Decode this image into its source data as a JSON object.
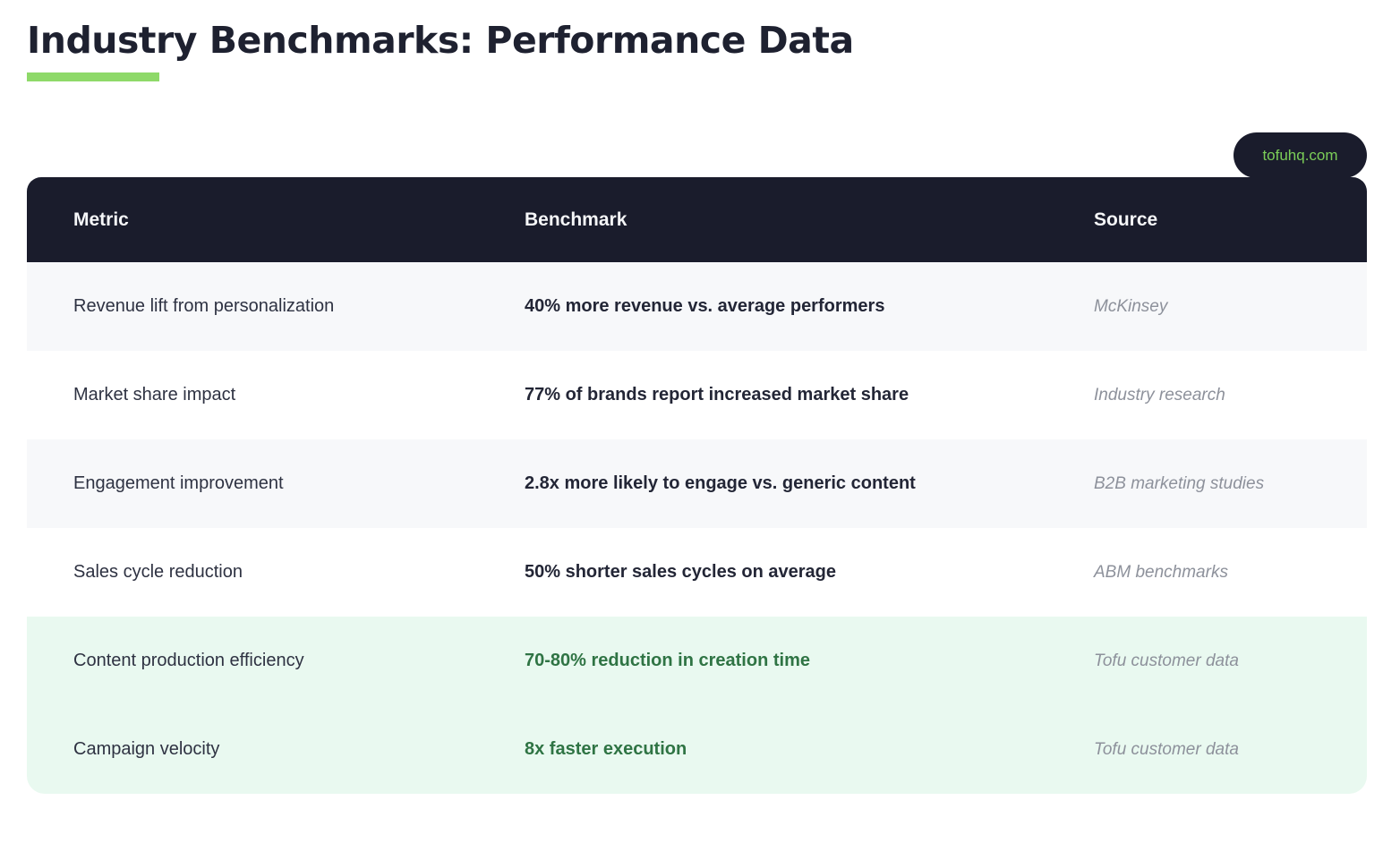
{
  "page": {
    "title": "Industry Benchmarks: Performance Data"
  },
  "badge": {
    "label": "tofuhq.com"
  },
  "table": {
    "columns": [
      "Metric",
      "Benchmark",
      "Source"
    ],
    "rows": [
      {
        "metric": "Revenue lift from personalization",
        "benchmark": "40% more revenue vs. average performers",
        "source": "McKinsey",
        "highlight": false
      },
      {
        "metric": "Market share impact",
        "benchmark": "77% of brands report increased market share",
        "source": "Industry research",
        "highlight": false
      },
      {
        "metric": "Engagement improvement",
        "benchmark": "2.8x more likely to engage vs. generic content",
        "source": "B2B marketing studies",
        "highlight": false
      },
      {
        "metric": "Sales cycle reduction",
        "benchmark": "50% shorter sales cycles on average",
        "source": "ABM benchmarks",
        "highlight": false
      },
      {
        "metric": "Content production efficiency",
        "benchmark": "70-80% reduction in creation time",
        "source": "Tofu customer data",
        "highlight": true
      },
      {
        "metric": "Campaign velocity",
        "benchmark": "8x faster execution",
        "source": "Tofu customer data",
        "highlight": true
      }
    ]
  },
  "colors": {
    "accent_green": "#8ed969",
    "header_bg": "#1a1c2c",
    "title_text": "#1e2130",
    "row_alt_bg": "#f7f8fa",
    "highlight_row_bg": "#e9f9f0",
    "highlight_text": "#2f7444",
    "badge_text": "#7bcd58",
    "source_text": "#8d919b"
  }
}
